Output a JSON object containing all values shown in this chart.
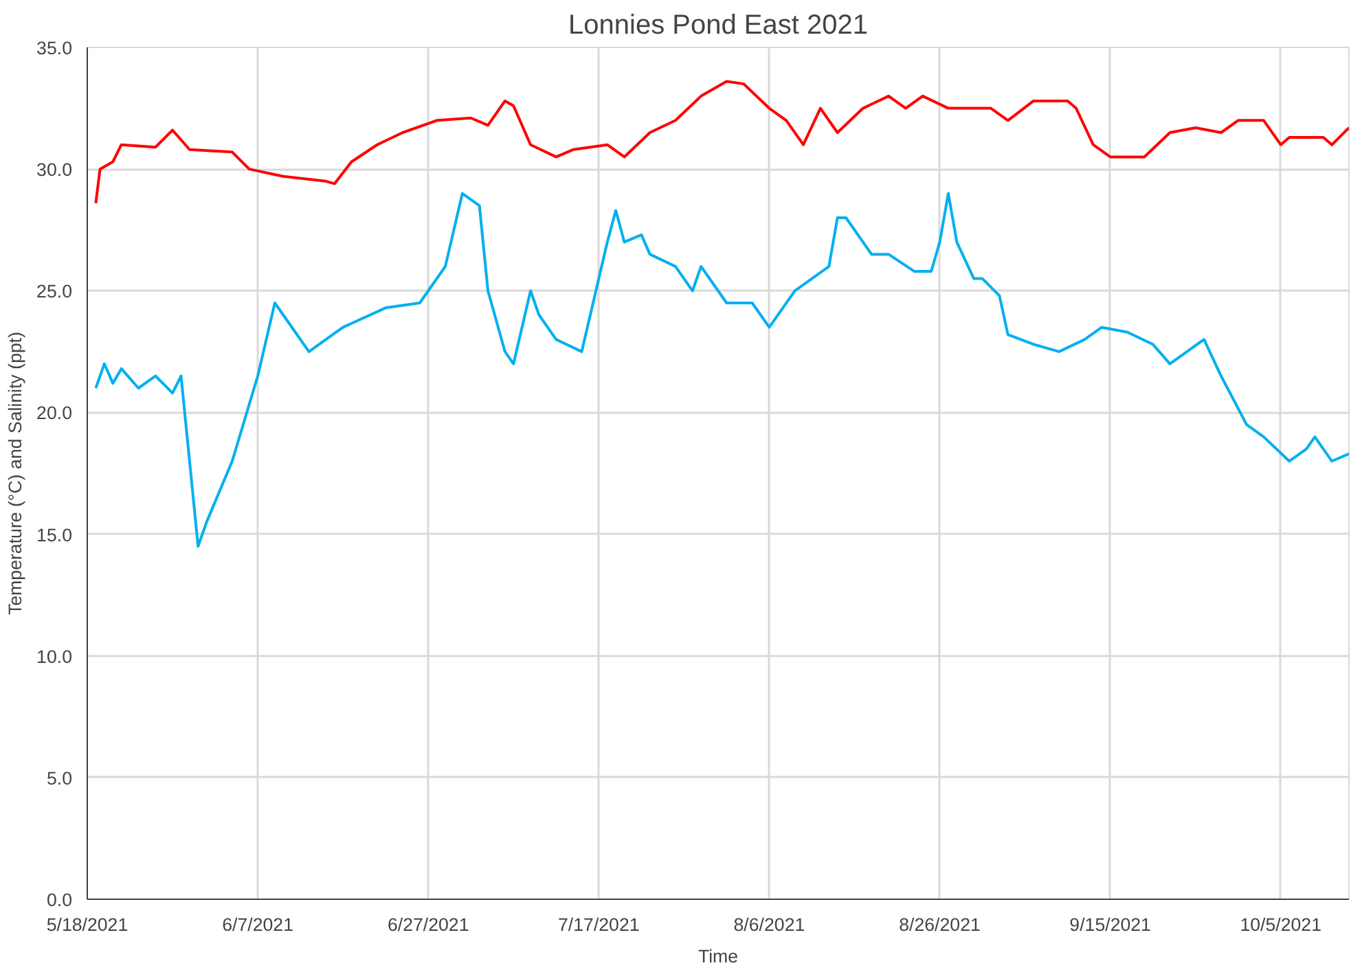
{
  "chart_data": {
    "type": "line",
    "title": "Lonnies Pond East 2021",
    "xlabel": "Time",
    "ylabel": "Temperature (°C) and Salinity (ppt)",
    "xlim": [
      "2021-05-18",
      "2021-10-13"
    ],
    "xticks": [
      {
        "value": "2021-05-18",
        "label": "5/18/2021"
      },
      {
        "value": "2021-06-07",
        "label": "6/7/2021"
      },
      {
        "value": "2021-06-27",
        "label": "6/27/2021"
      },
      {
        "value": "2021-07-17",
        "label": "7/17/2021"
      },
      {
        "value": "2021-08-06",
        "label": "8/6/2021"
      },
      {
        "value": "2021-08-26",
        "label": "8/26/2021"
      },
      {
        "value": "2021-09-15",
        "label": "9/15/2021"
      },
      {
        "value": "2021-10-05",
        "label": "10/5/2021"
      }
    ],
    "ylim": [
      0,
      35
    ],
    "yticks": [
      {
        "value": 0,
        "label": "0.0"
      },
      {
        "value": 5,
        "label": "5.0"
      },
      {
        "value": 10,
        "label": "10.0"
      },
      {
        "value": 15,
        "label": "15.0"
      },
      {
        "value": 20,
        "label": "20.0"
      },
      {
        "value": 25,
        "label": "25.0"
      },
      {
        "value": 30,
        "label": "30.0"
      },
      {
        "value": 35,
        "label": "35.0"
      }
    ],
    "grid": true,
    "marker": "none",
    "line_style": "solid",
    "series": [
      {
        "color": "#ff0000",
        "x": [
          "2021-05-19",
          "2021-05-19T12:00",
          "2021-05-21",
          "2021-05-22",
          "2021-05-26",
          "2021-05-28",
          "2021-05-30",
          "2021-06-04",
          "2021-06-06",
          "2021-06-10",
          "2021-06-15",
          "2021-06-16",
          "2021-06-18",
          "2021-06-21",
          "2021-06-24",
          "2021-06-28",
          "2021-07-02",
          "2021-07-04",
          "2021-07-06",
          "2021-07-07",
          "2021-07-09",
          "2021-07-12",
          "2021-07-14",
          "2021-07-18",
          "2021-07-20",
          "2021-07-23",
          "2021-07-26",
          "2021-07-29",
          "2021-08-01",
          "2021-08-03",
          "2021-08-06",
          "2021-08-08",
          "2021-08-10",
          "2021-08-12",
          "2021-08-14",
          "2021-08-17",
          "2021-08-20",
          "2021-08-22",
          "2021-08-24",
          "2021-08-27",
          "2021-09-01",
          "2021-09-03",
          "2021-09-06",
          "2021-09-10",
          "2021-09-11",
          "2021-09-13",
          "2021-09-15",
          "2021-09-19",
          "2021-09-22",
          "2021-09-25",
          "2021-09-28",
          "2021-09-30",
          "2021-10-03",
          "2021-10-05",
          "2021-10-06",
          "2021-10-10",
          "2021-10-11",
          "2021-10-13"
        ],
        "values": [
          28.6,
          30.0,
          30.3,
          31.0,
          30.9,
          31.6,
          30.8,
          30.7,
          30.0,
          29.7,
          29.5,
          29.4,
          30.3,
          31.0,
          31.5,
          32.0,
          32.1,
          31.8,
          32.8,
          32.6,
          31.0,
          30.5,
          30.8,
          31.0,
          30.5,
          31.5,
          32.0,
          33.0,
          33.6,
          33.5,
          32.5,
          32.0,
          31.0,
          32.5,
          31.5,
          32.5,
          33.0,
          32.5,
          33.0,
          32.5,
          32.5,
          32.0,
          32.8,
          32.8,
          32.5,
          31.0,
          30.5,
          30.5,
          31.5,
          31.7,
          31.5,
          32.0,
          32.0,
          31.0,
          31.3,
          31.3,
          31.0,
          31.7
        ]
      },
      {
        "color": "#00b0f0",
        "x": [
          "2021-05-19",
          "2021-05-20",
          "2021-05-21",
          "2021-05-22",
          "2021-05-24",
          "2021-05-26",
          "2021-05-28",
          "2021-05-29",
          "2021-05-31",
          "2021-06-01",
          "2021-06-04",
          "2021-06-07",
          "2021-06-09",
          "2021-06-13",
          "2021-06-17",
          "2021-06-22",
          "2021-06-26",
          "2021-06-29",
          "2021-07-01",
          "2021-07-03",
          "2021-07-04",
          "2021-07-06",
          "2021-07-07",
          "2021-07-09",
          "2021-07-10",
          "2021-07-12",
          "2021-07-15",
          "2021-07-16",
          "2021-07-18",
          "2021-07-19",
          "2021-07-20",
          "2021-07-22",
          "2021-07-23",
          "2021-07-26",
          "2021-07-28",
          "2021-07-29",
          "2021-08-01",
          "2021-08-04",
          "2021-08-06",
          "2021-08-09",
          "2021-08-11",
          "2021-08-13",
          "2021-08-14",
          "2021-08-15",
          "2021-08-18",
          "2021-08-20",
          "2021-08-23",
          "2021-08-25",
          "2021-08-26",
          "2021-08-27",
          "2021-08-28",
          "2021-08-30",
          "2021-08-31",
          "2021-09-02",
          "2021-09-03",
          "2021-09-06",
          "2021-09-09",
          "2021-09-12",
          "2021-09-14",
          "2021-09-17",
          "2021-09-20",
          "2021-09-22",
          "2021-09-24",
          "2021-09-26",
          "2021-09-28",
          "2021-10-01",
          "2021-10-03",
          "2021-10-06",
          "2021-10-08",
          "2021-10-09",
          "2021-10-11",
          "2021-10-13"
        ],
        "values": [
          21.0,
          22.0,
          21.2,
          21.8,
          21.0,
          21.5,
          20.8,
          21.5,
          14.5,
          15.5,
          18.0,
          21.5,
          24.5,
          22.5,
          23.5,
          24.3,
          24.5,
          26.0,
          29.0,
          28.5,
          25.0,
          22.5,
          22.0,
          25.0,
          24.0,
          23.0,
          22.5,
          24.0,
          27.0,
          28.3,
          27.0,
          27.3,
          26.5,
          26.0,
          25.0,
          26.0,
          24.5,
          24.5,
          23.5,
          25.0,
          25.5,
          26.0,
          28.0,
          28.0,
          26.5,
          26.5,
          25.8,
          25.8,
          27.0,
          29.0,
          27.0,
          25.5,
          25.5,
          24.8,
          23.2,
          22.8,
          22.5,
          23.0,
          23.5,
          23.3,
          22.8,
          22.0,
          22.5,
          23.0,
          21.5,
          19.5,
          19.0,
          18.0,
          18.5,
          19.0,
          18.0,
          18.3
        ]
      }
    ]
  }
}
